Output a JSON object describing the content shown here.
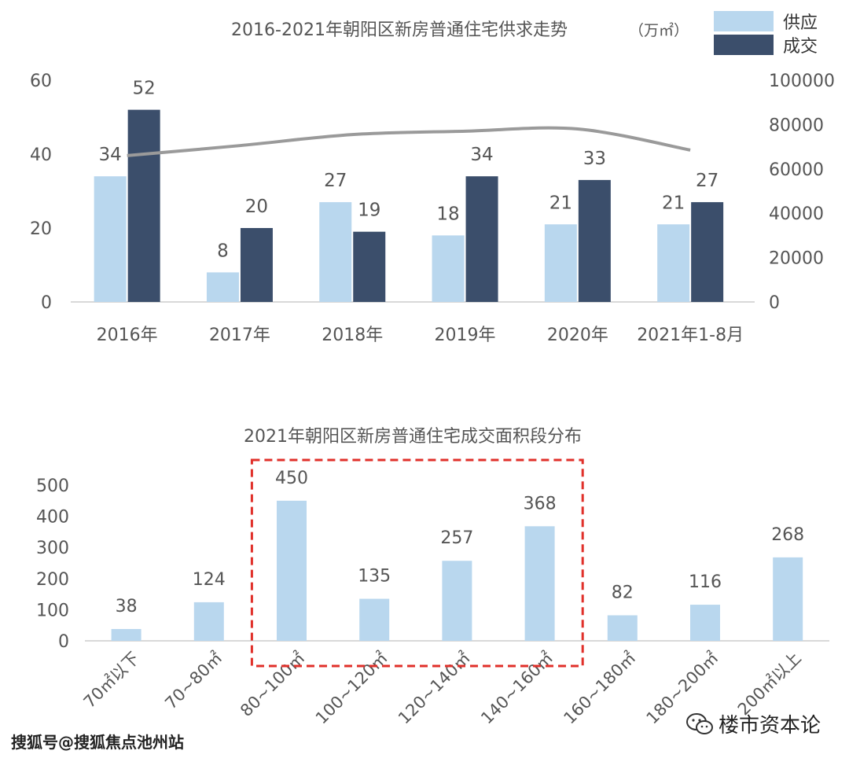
{
  "colors": {
    "supply": "#b9d7ee",
    "deal": "#3b4e6b",
    "line": "#9a9a9a",
    "bar2": "#b9d7ee",
    "highlight": "#e0302a",
    "axis": "#d9d9d9",
    "text": "#555555"
  },
  "chart_data": [
    {
      "type": "bar",
      "title": "2016-2021年朝阳区新房普通住宅供求走势",
      "unit": "（万㎡）",
      "categories": [
        "2016年",
        "2017年",
        "2018年",
        "2019年",
        "2020年",
        "2021年1-8月"
      ],
      "series": [
        {
          "name": "供应",
          "values": [
            34,
            8,
            27,
            18,
            21,
            21
          ]
        },
        {
          "name": "成交",
          "values": [
            52,
            20,
            19,
            34,
            33,
            27
          ]
        }
      ],
      "line_series": {
        "values": [
          66000,
          70500,
          75500,
          77000,
          78000,
          68500
        ],
        "axis": "right"
      },
      "ylim": [
        0,
        60
      ],
      "yticks": [
        "0",
        "20",
        "40",
        "60"
      ],
      "y2lim": [
        0,
        100000
      ],
      "y2ticks": [
        "0",
        "20000",
        "40000",
        "60000",
        "80000",
        "100000"
      ],
      "legend": "top-right",
      "grid": false
    },
    {
      "type": "bar",
      "title": "2021年朝阳区新房普通住宅成交面积段分布",
      "categories": [
        "70㎡以下",
        "70~80㎡",
        "80~100㎡",
        "100~120㎡",
        "120~140㎡",
        "140~160㎡",
        "160~180㎡",
        "180~200㎡",
        "200㎡以上"
      ],
      "values": [
        38,
        124,
        450,
        135,
        257,
        368,
        82,
        116,
        268
      ],
      "ylim": [
        0,
        500
      ],
      "yticks": [
        "0",
        "100",
        "200",
        "300",
        "400",
        "500"
      ],
      "highlight_range": [
        "80~100㎡",
        "140~160㎡"
      ],
      "grid": false
    }
  ],
  "footer": {
    "watermark": "搜狐号@搜狐焦点池州站",
    "brand": "楼市资本论"
  }
}
